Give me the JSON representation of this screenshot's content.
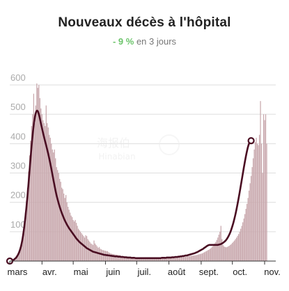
{
  "header": {
    "title": "Nouveaux décès à l'hôpital",
    "change": "- 9 %",
    "period": "en 3 jours"
  },
  "watermark": {
    "line1": "海报伯",
    "line2": "Hinabian"
  },
  "colors": {
    "bar": "#c9a9ae",
    "line": "#4a0d22",
    "grid": "#dddddd",
    "change": "#6cc46b"
  },
  "chart_data": {
    "type": "bar",
    "title": "Nouveaux décès à l'hôpital",
    "xlabel": "",
    "ylabel": "",
    "ylim": [
      0,
      600
    ],
    "y_ticks": [
      100,
      200,
      300,
      400,
      500,
      600
    ],
    "x_tick_labels": [
      "mars",
      "avr.",
      "mai",
      "juin",
      "juil.",
      "août",
      "sept.",
      "oct.",
      "nov."
    ],
    "grid": true,
    "series": [
      {
        "type": "bar",
        "values": [
          0,
          1,
          2,
          3,
          5,
          8,
          11,
          16,
          22,
          30,
          40,
          55,
          75,
          100,
          130,
          165,
          205,
          250,
          305,
          360,
          410,
          460,
          500,
          570,
          470,
          530,
          605,
          590,
          600,
          555,
          520,
          500,
          480,
          470,
          460,
          530,
          470,
          455,
          430,
          420,
          400,
          380,
          370,
          380,
          350,
          320,
          310,
          300,
          280,
          270,
          250,
          245,
          230,
          215,
          225,
          200,
          185,
          175,
          165,
          155,
          150,
          140,
          135,
          140,
          130,
          120,
          110,
          105,
          100,
          95,
          90,
          85,
          80,
          88,
          85,
          75,
          70,
          65,
          60,
          58,
          55,
          70,
          60,
          55,
          50,
          45,
          48,
          42,
          40,
          38,
          37,
          36,
          35,
          34,
          34,
          30,
          28,
          26,
          25,
          24,
          23,
          23,
          22,
          22,
          21,
          20,
          20,
          18,
          18,
          17,
          17,
          16,
          16,
          16,
          15,
          15,
          14,
          14,
          13,
          13,
          12,
          12,
          12,
          11,
          11,
          11,
          11,
          10,
          10,
          10,
          10,
          10,
          10,
          9,
          9,
          9,
          9,
          9,
          9,
          9,
          9,
          9,
          9,
          10,
          10,
          10,
          10,
          10,
          10,
          10,
          10,
          11,
          11,
          11,
          11,
          12,
          12,
          12,
          12,
          12,
          13,
          13,
          13,
          13,
          14,
          14,
          14,
          15,
          15,
          15,
          16,
          16,
          17,
          17,
          18,
          18,
          19,
          19,
          20,
          20,
          21,
          22,
          23,
          24,
          25,
          26,
          28,
          30,
          32,
          34,
          36,
          38,
          40,
          43,
          46,
          50,
          55,
          60,
          65,
          72,
          80,
          90,
          100,
          120,
          75,
          55,
          50,
          48,
          47,
          48,
          50,
          52,
          55,
          58,
          62,
          66,
          70,
          75,
          80,
          86,
          92,
          100,
          110,
          120,
          132,
          145,
          160,
          178,
          195,
          215,
          240,
          265,
          290,
          320,
          350,
          380,
          405,
          420,
          400,
          395,
          430,
          545,
          400,
          300,
          500,
          480,
          500,
          400
        ]
      },
      {
        "type": "line",
        "values": [
          0,
          1,
          2,
          3,
          5,
          8,
          11,
          16,
          22,
          30,
          40,
          53,
          70,
          92,
          118,
          148,
          182,
          220,
          262,
          306,
          350,
          392,
          430,
          462,
          487,
          504,
          512,
          510,
          500,
          485,
          468,
          452,
          437,
          422,
          408,
          394,
          380,
          365,
          349,
          332,
          314,
          295,
          276,
          258,
          240,
          224,
          210,
          197,
          185,
          174,
          164,
          155,
          146,
          138,
          131,
          124,
          118,
          112,
          107,
          102,
          97,
          92,
          87,
          82,
          77,
          73,
          69,
          65,
          62,
          59,
          56,
          53,
          50,
          47,
          44,
          42,
          40,
          38,
          36,
          34,
          32,
          31,
          30,
          29,
          28,
          27,
          26,
          25,
          24,
          23,
          22,
          21,
          21,
          20,
          20,
          19,
          19,
          18,
          18,
          17,
          17,
          16,
          16,
          16,
          15,
          15,
          15,
          14,
          14,
          14,
          13,
          13,
          13,
          12,
          12,
          12,
          12,
          11,
          11,
          11,
          11,
          10,
          10,
          10,
          10,
          10,
          10,
          10,
          10,
          10,
          10,
          10,
          10,
          10,
          10,
          10,
          10,
          10,
          10,
          10,
          10,
          10,
          10,
          10,
          10,
          10,
          11,
          11,
          11,
          11,
          11,
          12,
          12,
          12,
          12,
          12,
          13,
          13,
          13,
          14,
          14,
          14,
          15,
          15,
          16,
          16,
          17,
          17,
          18,
          19,
          19,
          20,
          21,
          22,
          23,
          24,
          25,
          26,
          27,
          29,
          30,
          32,
          34,
          36,
          38,
          40,
          42,
          45,
          47,
          50,
          52,
          54,
          55,
          55,
          55,
          55,
          55,
          55,
          55,
          55,
          55,
          56,
          57,
          58,
          60,
          62,
          65,
          68,
          72,
          77,
          83,
          90,
          98,
          108,
          119,
          131,
          145,
          160,
          177,
          195,
          214,
          234,
          255,
          276,
          297,
          318,
          338,
          357,
          374,
          389,
          400,
          407,
          410
        ]
      }
    ]
  }
}
